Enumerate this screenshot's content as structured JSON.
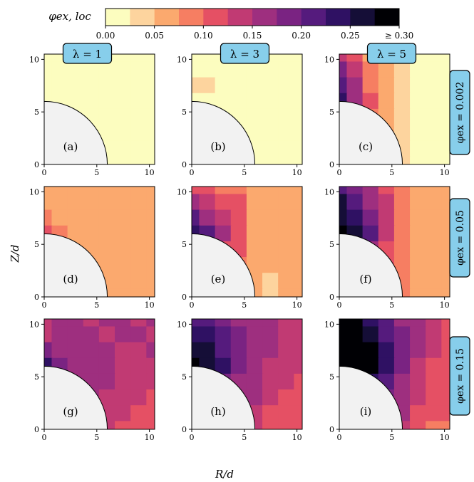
{
  "colorbar": {
    "label": "φex, loc",
    "tick_labels": [
      "0.00",
      "0.05",
      "0.10",
      "0.15",
      "0.20",
      "0.25",
      "≥ 0.30"
    ],
    "colors": [
      "#fcfdbf",
      "#fdd49e",
      "#fba96e",
      "#f67e62",
      "#e55064",
      "#c13a73",
      "#9e2f7f",
      "#7a2382",
      "#551b7d",
      "#2f1163",
      "#150e37",
      "#000004"
    ]
  },
  "column_labels": [
    "λ = 1",
    "λ = 3",
    "λ = 5"
  ],
  "row_labels": [
    "φex = 0.002",
    "φex = 0.05",
    "φex = 0.15"
  ],
  "panel_letters": [
    "(a)",
    "(b)",
    "(c)",
    "(d)",
    "(e)",
    "(f)",
    "(g)",
    "(h)",
    "(i)"
  ],
  "axis_ticks": [
    "0",
    "5",
    "10"
  ],
  "xlabel": "R/d",
  "ylabel": "Z/d",
  "chart_data": {
    "type": "heatmap",
    "quantity": "φex, loc",
    "xlabel": "R/d",
    "ylabel": "Z/d",
    "xlim": [
      0,
      10.5
    ],
    "ylim": [
      0,
      10.5
    ],
    "xticks": [
      0,
      5,
      10
    ],
    "yticks": [
      0,
      5,
      10
    ],
    "obstacle_radius": 6,
    "color_range": [
      0,
      0.3
    ],
    "color_levels": [
      0,
      0.025,
      0.05,
      0.075,
      0.1,
      0.125,
      0.15,
      0.175,
      0.2,
      0.225,
      0.25,
      0.275,
      0.3
    ],
    "grid_x": [
      0,
      1.5,
      3,
      4.5,
      6,
      7.5,
      9,
      10.5
    ],
    "grid_z": [
      10.5,
      9,
      7.5,
      6,
      4.5,
      3,
      1.5,
      0
    ],
    "panels": [
      {
        "letter": "(a)",
        "lambda": 1,
        "phi_ex": 0.002,
        "values": [
          [
            0.01,
            0.01,
            0.01,
            0.01,
            0.01,
            0.01,
            0.01,
            0.01
          ],
          [
            0.01,
            0.01,
            0.01,
            0.01,
            0.01,
            0.01,
            0.01,
            0.01
          ],
          [
            0.02,
            0.01,
            0.01,
            0.01,
            0.01,
            0.01,
            0.01,
            0.01
          ],
          [
            0.01,
            0.01,
            0.01,
            0.01,
            0.01,
            0.01,
            0.01,
            0.01
          ],
          [
            0.01,
            0.01,
            0.01,
            0.01,
            0.01,
            0.01,
            0.01,
            0.01
          ],
          [
            0.01,
            0.01,
            0.01,
            0.01,
            0.01,
            0.01,
            0.01,
            0.01
          ],
          [
            0.01,
            0.01,
            0.01,
            0.01,
            0.01,
            0.01,
            0.01,
            0.01
          ],
          [
            0.01,
            0.01,
            0.01,
            0.01,
            0.01,
            0.01,
            0.01,
            0.01
          ]
        ]
      },
      {
        "letter": "(b)",
        "lambda": 3,
        "phi_ex": 0.002,
        "values": [
          [
            0.01,
            0.01,
            0.01,
            0.01,
            0.01,
            0.01,
            0.01,
            0.01
          ],
          [
            0.01,
            0.01,
            0.01,
            0.01,
            0.01,
            0.01,
            0.01,
            0.01
          ],
          [
            0.03,
            0.03,
            0.01,
            0.01,
            0.01,
            0.01,
            0.01,
            0.01
          ],
          [
            0.02,
            0.01,
            0.01,
            0.01,
            0.01,
            0.01,
            0.01,
            0.01
          ],
          [
            0.01,
            0.01,
            0.01,
            0.01,
            0.01,
            0.01,
            0.01,
            0.01
          ],
          [
            0.01,
            0.01,
            0.01,
            0.01,
            0.01,
            0.01,
            0.01,
            0.01
          ],
          [
            0.01,
            0.01,
            0.01,
            0.01,
            0.01,
            0.01,
            0.01,
            0.01
          ],
          [
            0.01,
            0.01,
            0.01,
            0.01,
            0.01,
            0.01,
            0.01,
            0.01
          ]
        ]
      },
      {
        "letter": "(c)",
        "lambda": 5,
        "phi_ex": 0.002,
        "values": [
          [
            0.14,
            0.1,
            0.07,
            0.05,
            0.03,
            0.02,
            0.02,
            0.02
          ],
          [
            0.18,
            0.14,
            0.09,
            0.06,
            0.04,
            0.02,
            0.02,
            0.02
          ],
          [
            0.2,
            0.15,
            0.09,
            0.06,
            0.04,
            0.02,
            0.02,
            0.02
          ],
          [
            0.24,
            0.17,
            0.1,
            0.06,
            0.04,
            0.02,
            0.02,
            0.02
          ],
          [
            0.17,
            0.12,
            0.08,
            0.06,
            0.04,
            0.02,
            0.02,
            0.02
          ],
          [
            0.12,
            0.1,
            0.07,
            0.05,
            0.04,
            0.02,
            0.02,
            0.02
          ],
          [
            0.09,
            0.08,
            0.07,
            0.05,
            0.04,
            0.02,
            0.02,
            0.02
          ],
          [
            0.08,
            0.07,
            0.06,
            0.05,
            0.04,
            0.02,
            0.02,
            0.02
          ]
        ]
      },
      {
        "letter": "(d)",
        "lambda": 1,
        "phi_ex": 0.05,
        "values": [
          [
            0.06,
            0.06,
            0.06,
            0.06,
            0.06,
            0.05,
            0.06,
            0.06
          ],
          [
            0.07,
            0.06,
            0.06,
            0.06,
            0.05,
            0.06,
            0.06,
            0.06
          ],
          [
            0.08,
            0.07,
            0.06,
            0.06,
            0.06,
            0.06,
            0.05,
            0.06
          ],
          [
            0.11,
            0.08,
            0.07,
            0.06,
            0.06,
            0.05,
            0.06,
            0.06
          ],
          [
            0.07,
            0.07,
            0.06,
            0.06,
            0.05,
            0.06,
            0.06,
            0.06
          ],
          [
            0.06,
            0.06,
            0.06,
            0.06,
            0.06,
            0.05,
            0.06,
            0.06
          ],
          [
            0.06,
            0.06,
            0.06,
            0.06,
            0.06,
            0.06,
            0.06,
            0.06
          ],
          [
            0.06,
            0.06,
            0.06,
            0.06,
            0.06,
            0.06,
            0.06,
            0.06
          ]
        ]
      },
      {
        "letter": "(e)",
        "lambda": 3,
        "phi_ex": 0.05,
        "values": [
          [
            0.12,
            0.1,
            0.09,
            0.08,
            0.07,
            0.06,
            0.05,
            0.05
          ],
          [
            0.17,
            0.14,
            0.12,
            0.1,
            0.07,
            0.06,
            0.05,
            0.05
          ],
          [
            0.2,
            0.17,
            0.13,
            0.1,
            0.07,
            0.06,
            0.05,
            0.05
          ],
          [
            0.23,
            0.22,
            0.15,
            0.1,
            0.07,
            0.05,
            0.05,
            0.05
          ],
          [
            0.19,
            0.15,
            0.12,
            0.1,
            0.07,
            0.05,
            0.05,
            0.05
          ],
          [
            0.14,
            0.12,
            0.11,
            0.09,
            0.06,
            0.05,
            0.05,
            0.05
          ],
          [
            0.12,
            0.11,
            0.1,
            0.08,
            0.06,
            0.04,
            0.05,
            0.05
          ],
          [
            0.11,
            0.1,
            0.09,
            0.08,
            0.06,
            0.03,
            0.05,
            0.05
          ]
        ]
      },
      {
        "letter": "(f)",
        "lambda": 5,
        "phi_ex": 0.05,
        "values": [
          [
            0.22,
            0.19,
            0.15,
            0.12,
            0.09,
            0.06,
            0.05,
            0.05
          ],
          [
            0.25,
            0.22,
            0.17,
            0.13,
            0.09,
            0.06,
            0.05,
            0.05
          ],
          [
            0.27,
            0.24,
            0.18,
            0.13,
            0.09,
            0.06,
            0.05,
            0.05
          ],
          [
            0.3,
            0.27,
            0.2,
            0.14,
            0.09,
            0.06,
            0.05,
            0.05
          ],
          [
            0.25,
            0.22,
            0.17,
            0.12,
            0.08,
            0.06,
            0.05,
            0.05
          ],
          [
            0.2,
            0.18,
            0.15,
            0.12,
            0.08,
            0.06,
            0.05,
            0.05
          ],
          [
            0.18,
            0.16,
            0.14,
            0.11,
            0.08,
            0.06,
            0.05,
            0.05
          ],
          [
            0.16,
            0.15,
            0.13,
            0.1,
            0.08,
            0.05,
            0.05,
            0.05
          ]
        ]
      },
      {
        "letter": "(g)",
        "lambda": 1,
        "phi_ex": 0.15,
        "values": [
          [
            0.14,
            0.15,
            0.15,
            0.14,
            0.15,
            0.15,
            0.14,
            0.15
          ],
          [
            0.14,
            0.15,
            0.16,
            0.15,
            0.14,
            0.15,
            0.15,
            0.14
          ],
          [
            0.19,
            0.16,
            0.15,
            0.16,
            0.15,
            0.14,
            0.14,
            0.15
          ],
          [
            0.23,
            0.18,
            0.16,
            0.15,
            0.15,
            0.14,
            0.13,
            0.14
          ],
          [
            0.17,
            0.16,
            0.16,
            0.15,
            0.15,
            0.14,
            0.13,
            0.13
          ],
          [
            0.15,
            0.15,
            0.15,
            0.15,
            0.14,
            0.14,
            0.13,
            0.12
          ],
          [
            0.14,
            0.15,
            0.15,
            0.14,
            0.14,
            0.13,
            0.11,
            0.12
          ],
          [
            0.14,
            0.14,
            0.14,
            0.14,
            0.13,
            0.11,
            0.1,
            0.12
          ]
        ]
      },
      {
        "letter": "(h)",
        "lambda": 3,
        "phi_ex": 0.15,
        "values": [
          [
            0.22,
            0.21,
            0.19,
            0.17,
            0.16,
            0.15,
            0.14,
            0.14
          ],
          [
            0.24,
            0.23,
            0.21,
            0.18,
            0.16,
            0.15,
            0.14,
            0.14
          ],
          [
            0.27,
            0.25,
            0.22,
            0.19,
            0.16,
            0.15,
            0.14,
            0.14
          ],
          [
            0.3,
            0.27,
            0.23,
            0.19,
            0.16,
            0.14,
            0.13,
            0.13
          ],
          [
            0.24,
            0.22,
            0.19,
            0.17,
            0.15,
            0.14,
            0.13,
            0.12
          ],
          [
            0.2,
            0.19,
            0.17,
            0.16,
            0.15,
            0.13,
            0.12,
            0.12
          ],
          [
            0.18,
            0.17,
            0.16,
            0.15,
            0.14,
            0.12,
            0.11,
            0.11
          ],
          [
            0.17,
            0.16,
            0.15,
            0.14,
            0.13,
            0.11,
            0.1,
            0.1
          ]
        ]
      },
      {
        "letter": "(i)",
        "lambda": 5,
        "phi_ex": 0.15,
        "values": [
          [
            0.3,
            0.28,
            0.24,
            0.2,
            0.17,
            0.15,
            0.13,
            0.12
          ],
          [
            0.3,
            0.3,
            0.27,
            0.22,
            0.18,
            0.15,
            0.13,
            0.12
          ],
          [
            0.3,
            0.3,
            0.28,
            0.23,
            0.18,
            0.15,
            0.13,
            0.12
          ],
          [
            0.3,
            0.3,
            0.29,
            0.23,
            0.18,
            0.14,
            0.12,
            0.12
          ],
          [
            0.28,
            0.26,
            0.24,
            0.2,
            0.17,
            0.14,
            0.12,
            0.11
          ],
          [
            0.24,
            0.22,
            0.2,
            0.18,
            0.16,
            0.13,
            0.11,
            0.1
          ],
          [
            0.2,
            0.19,
            0.18,
            0.17,
            0.15,
            0.12,
            0.1,
            0.1
          ],
          [
            0.18,
            0.18,
            0.17,
            0.16,
            0.14,
            0.11,
            0.09,
            0.09
          ]
        ]
      }
    ]
  }
}
